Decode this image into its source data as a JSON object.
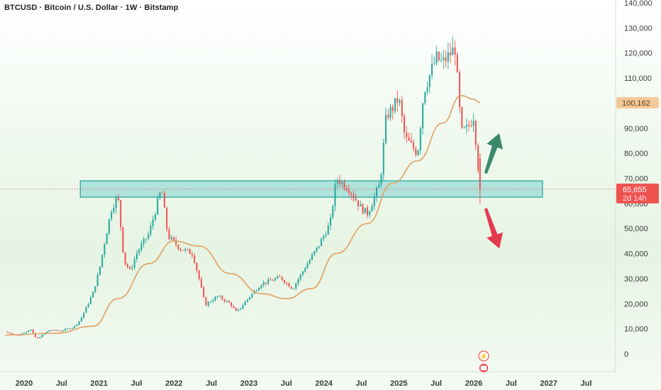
{
  "title": "BTCUSD · Bitcoin / U.S. Dollar · 1W · Bitstamp",
  "colors": {
    "up": "#26a69a",
    "down": "#ef5350",
    "ma": "#e0a060",
    "zone_fill": "#7fd3d0",
    "zone_border": "#1aa59b",
    "arrow_up": "#3c8a6e",
    "arrow_down": "#e53950",
    "price_line": "#e05050"
  },
  "chart_data": {
    "type": "candlestick",
    "y_axis": {
      "min": 0,
      "max": 140000,
      "scale": "linear",
      "side": "right",
      "ticks": [
        "140,000",
        "130,000",
        "120,000",
        "110,000",
        "100,000",
        "90,000",
        "80,000",
        "70,000",
        "60,000",
        "50,000",
        "40,000",
        "30,000",
        "20,000",
        "10,000",
        "0"
      ],
      "tick_values": [
        140000,
        130000,
        120000,
        110000,
        100000,
        90000,
        80000,
        70000,
        60000,
        50000,
        40000,
        30000,
        20000,
        10000,
        0
      ]
    },
    "x_axis": {
      "range": [
        "2019-10",
        "2027-10"
      ],
      "ticks": [
        {
          "label": "2020",
          "date": "2020-01"
        },
        {
          "label": "Jul",
          "date": "2020-07"
        },
        {
          "label": "2021",
          "date": "2021-01"
        },
        {
          "label": "Jul",
          "date": "2021-07"
        },
        {
          "label": "2022",
          "date": "2022-01"
        },
        {
          "label": "Jul",
          "date": "2022-07"
        },
        {
          "label": "2023",
          "date": "2023-01"
        },
        {
          "label": "Jul",
          "date": "2023-07"
        },
        {
          "label": "2024",
          "date": "2024-01"
        },
        {
          "label": "Jul",
          "date": "2024-07"
        },
        {
          "label": "2025",
          "date": "2025-01"
        },
        {
          "label": "Jul",
          "date": "2025-07"
        },
        {
          "label": "2026",
          "date": "2026-01"
        },
        {
          "label": "Jul",
          "date": "2026-07"
        },
        {
          "label": "2027",
          "date": "2027-01"
        },
        {
          "label": "Jul",
          "date": "2027-07"
        }
      ]
    },
    "price_path": [
      [
        "2019-10",
        8800
      ],
      [
        "2019-12",
        7200
      ],
      [
        "2020-02",
        9800
      ],
      [
        "2020-03",
        5800
      ],
      [
        "2020-05",
        9400
      ],
      [
        "2020-07",
        9200
      ],
      [
        "2020-09",
        10800
      ],
      [
        "2020-10",
        13500
      ],
      [
        "2020-12",
        24000
      ],
      [
        "2021-01",
        33000
      ],
      [
        "2021-02",
        46000
      ],
      [
        "2021-03",
        58000
      ],
      [
        "2021-04",
        63000
      ],
      [
        "2021-05",
        37000
      ],
      [
        "2021-06",
        33000
      ],
      [
        "2021-07",
        40000
      ],
      [
        "2021-09",
        48000
      ],
      [
        "2021-11",
        66000
      ],
      [
        "2021-12",
        47000
      ],
      [
        "2022-02",
        42000
      ],
      [
        "2022-04",
        40000
      ],
      [
        "2022-05",
        30000
      ],
      [
        "2022-06",
        19500
      ],
      [
        "2022-08",
        23000
      ],
      [
        "2022-10",
        20000
      ],
      [
        "2022-11",
        16500
      ],
      [
        "2023-01",
        22500
      ],
      [
        "2023-03",
        28000
      ],
      [
        "2023-06",
        30500
      ],
      [
        "2023-08",
        26000
      ],
      [
        "2023-10",
        34500
      ],
      [
        "2023-12",
        42500
      ],
      [
        "2024-02",
        52000
      ],
      [
        "2024-03",
        70000
      ],
      [
        "2024-05",
        66000
      ],
      [
        "2024-07",
        58000
      ],
      [
        "2024-08",
        56000
      ],
      [
        "2024-10",
        68000
      ],
      [
        "2024-11",
        95000
      ],
      [
        "2024-12",
        98000
      ],
      [
        "2025-01",
        102000
      ],
      [
        "2025-02",
        86000
      ],
      [
        "2025-04",
        80000
      ],
      [
        "2025-05",
        105000
      ],
      [
        "2025-07",
        118000
      ],
      [
        "2025-08",
        116000
      ],
      [
        "2025-10",
        122000
      ],
      [
        "2025-11",
        88000
      ],
      [
        "2025-12",
        90000
      ],
      [
        "2026-01",
        95000
      ],
      [
        "2026-02",
        65655
      ]
    ],
    "moving_average": [
      [
        "2019-10",
        7500
      ],
      [
        "2020-06",
        8200
      ],
      [
        "2020-12",
        11000
      ],
      [
        "2021-04",
        22000
      ],
      [
        "2021-09",
        36000
      ],
      [
        "2022-01",
        45000
      ],
      [
        "2022-05",
        43000
      ],
      [
        "2022-10",
        32000
      ],
      [
        "2023-03",
        24000
      ],
      [
        "2023-07",
        22000
      ],
      [
        "2023-11",
        26000
      ],
      [
        "2024-03",
        40000
      ],
      [
        "2024-08",
        52000
      ],
      [
        "2024-12",
        68000
      ],
      [
        "2025-04",
        77000
      ],
      [
        "2025-08",
        92000
      ],
      [
        "2025-11",
        103000
      ],
      [
        "2026-01",
        101500
      ],
      [
        "2026-02",
        100162
      ]
    ],
    "zone": {
      "from": "2020-10",
      "to": "2026-12",
      "low": 62500,
      "high": 69000
    },
    "last_price": {
      "value": 65655,
      "label": "65,655",
      "countdown": "2d 14h"
    },
    "ma_price": {
      "value": 100162,
      "label": "100,162"
    },
    "arrows": [
      {
        "direction": "up",
        "from": [
          "2026-02",
          72000
        ],
        "to": [
          "2026-06",
          88000
        ]
      },
      {
        "direction": "down",
        "from": [
          "2026-02",
          58000
        ],
        "to": [
          "2026-06",
          42000
        ]
      }
    ]
  }
}
